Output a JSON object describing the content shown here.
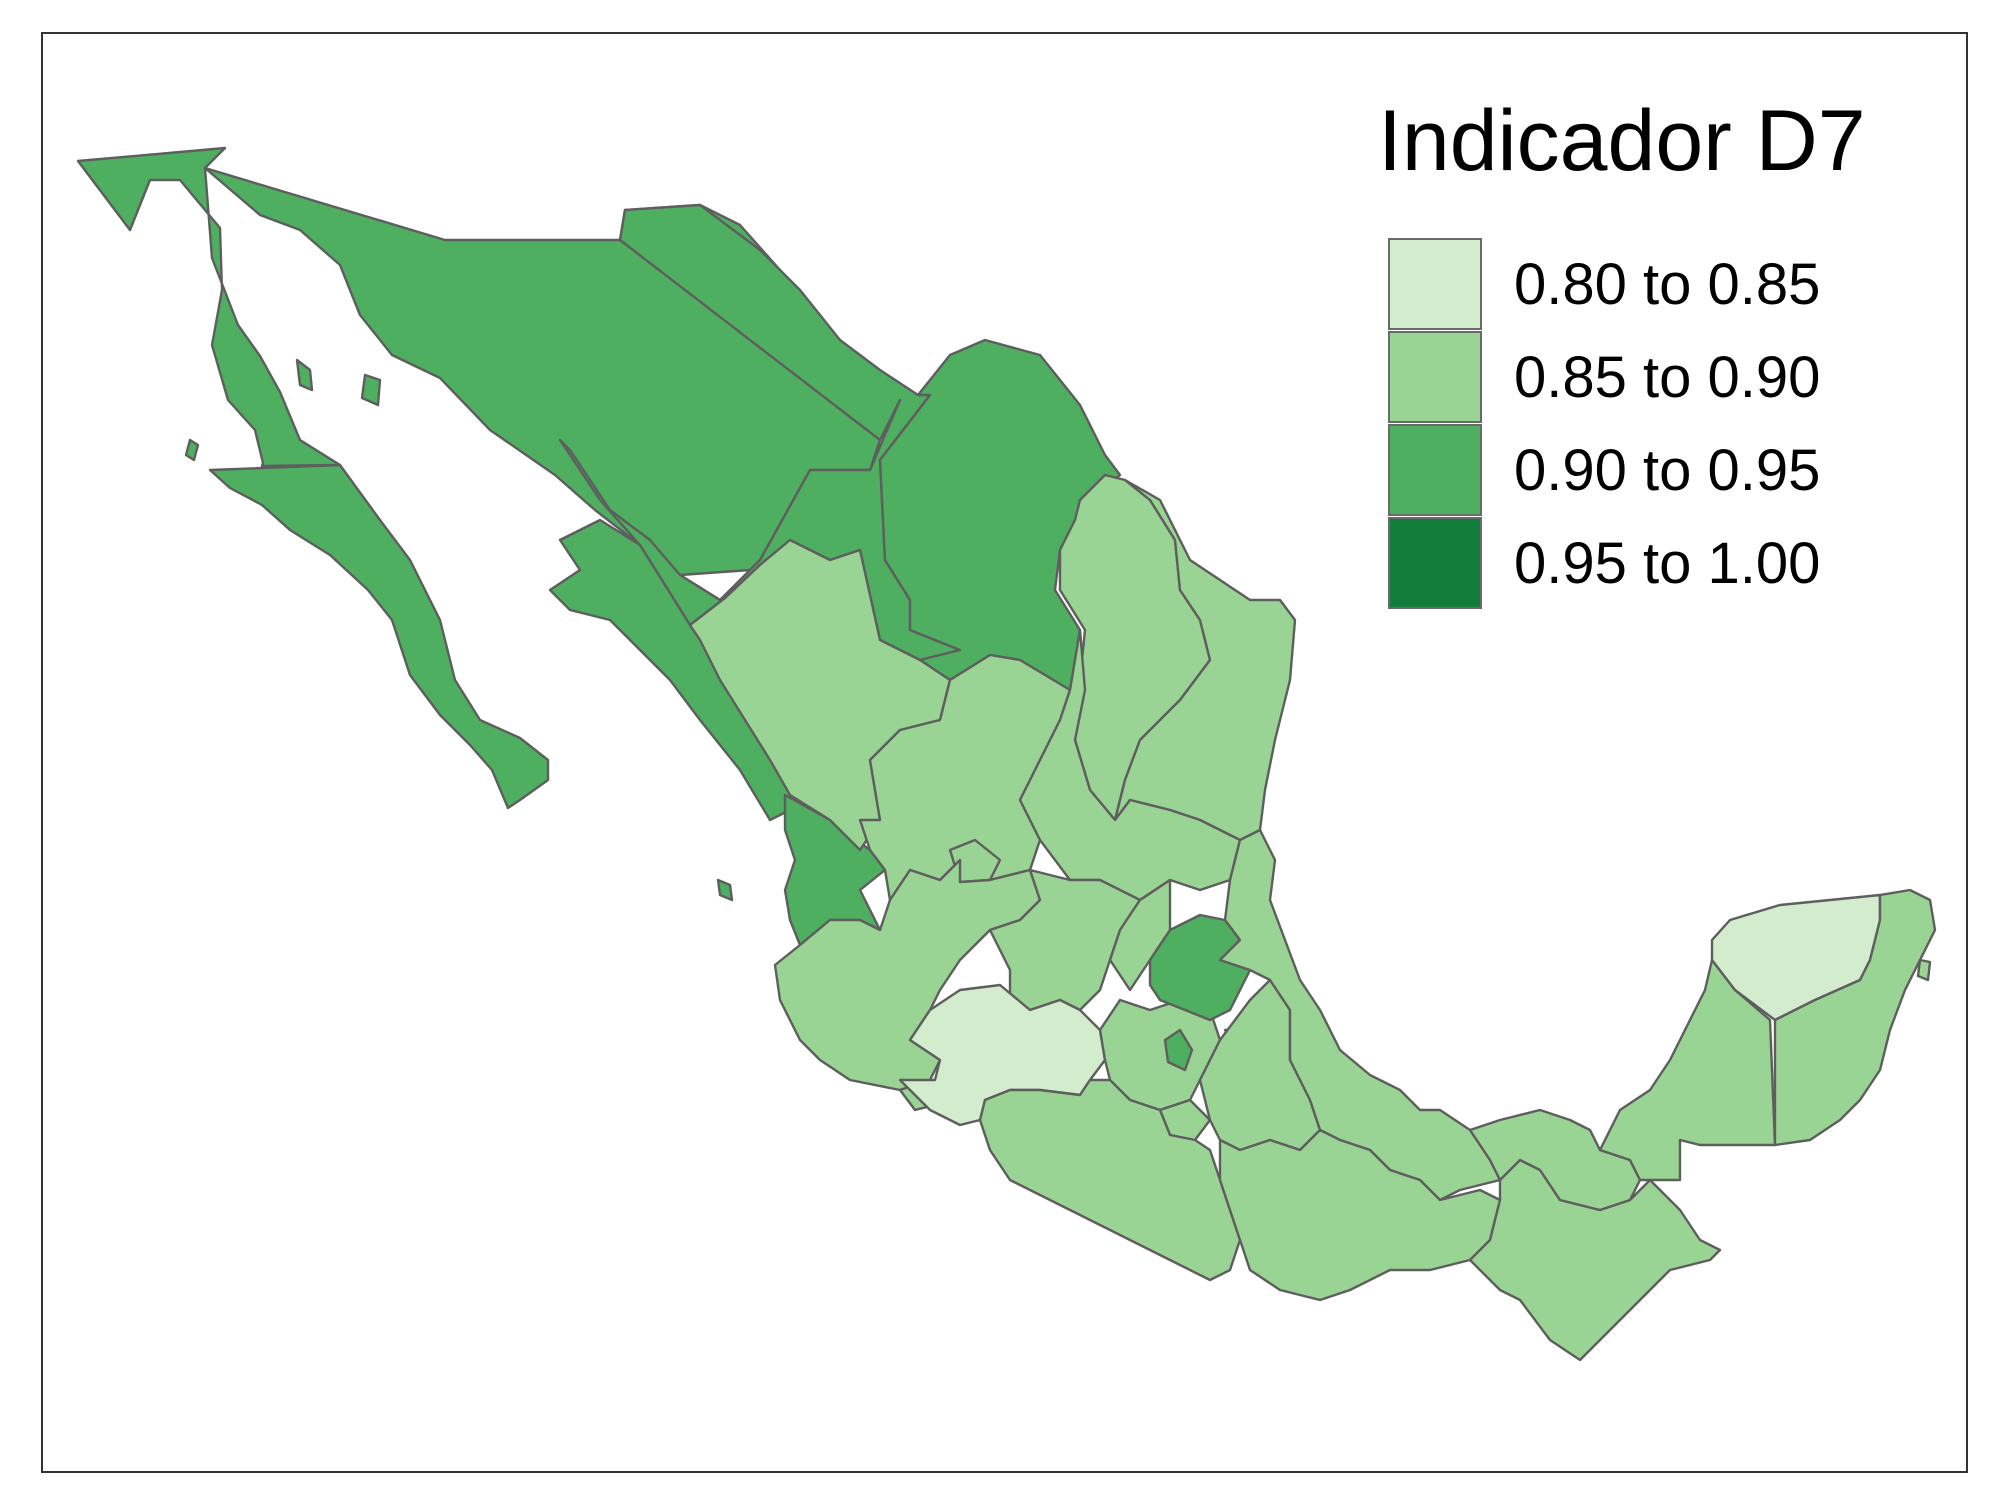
{
  "legend": {
    "title": "Indicador D7",
    "classes": [
      {
        "label": "0.80 to 0.85",
        "color": "#d3ecce"
      },
      {
        "label": "0.85 to 0.90",
        "color": "#9ad494"
      },
      {
        "label": "0.90 to 0.95",
        "color": "#4eaf61"
      },
      {
        "label": "0.95 to 1.00",
        "color": "#137e3b"
      }
    ]
  },
  "regions": [
    {
      "id": "baja-california",
      "class": 2
    },
    {
      "id": "baja-california-sur",
      "class": 2
    },
    {
      "id": "sonora",
      "class": 2
    },
    {
      "id": "chihuahua",
      "class": 2
    },
    {
      "id": "coahuila",
      "class": 2
    },
    {
      "id": "sinaloa",
      "class": 2
    },
    {
      "id": "nayarit",
      "class": 2
    },
    {
      "id": "hidalgo",
      "class": 2
    },
    {
      "id": "mexico-city",
      "class": 2
    },
    {
      "id": "nuevo-leon",
      "class": 1
    },
    {
      "id": "tamaulipas",
      "class": 1
    },
    {
      "id": "durango",
      "class": 1
    },
    {
      "id": "zacatecas",
      "class": 1
    },
    {
      "id": "san-luis-potosi",
      "class": 1
    },
    {
      "id": "aguascalientes",
      "class": 1
    },
    {
      "id": "jalisco",
      "class": 1
    },
    {
      "id": "guanajuato",
      "class": 1
    },
    {
      "id": "queretaro",
      "class": 1
    },
    {
      "id": "veracruz",
      "class": 1
    },
    {
      "id": "estado-de-mexico",
      "class": 1
    },
    {
      "id": "morelos",
      "class": 1
    },
    {
      "id": "puebla",
      "class": 1
    },
    {
      "id": "tlaxcala",
      "class": 1
    },
    {
      "id": "colima",
      "class": 1
    },
    {
      "id": "guerrero",
      "class": 1
    },
    {
      "id": "oaxaca",
      "class": 1
    },
    {
      "id": "chiapas",
      "class": 1
    },
    {
      "id": "tabasco",
      "class": 1
    },
    {
      "id": "campeche",
      "class": 1
    },
    {
      "id": "quintana-roo",
      "class": 1
    },
    {
      "id": "michoacan",
      "class": 0
    },
    {
      "id": "yucatan",
      "class": 0
    }
  ]
}
